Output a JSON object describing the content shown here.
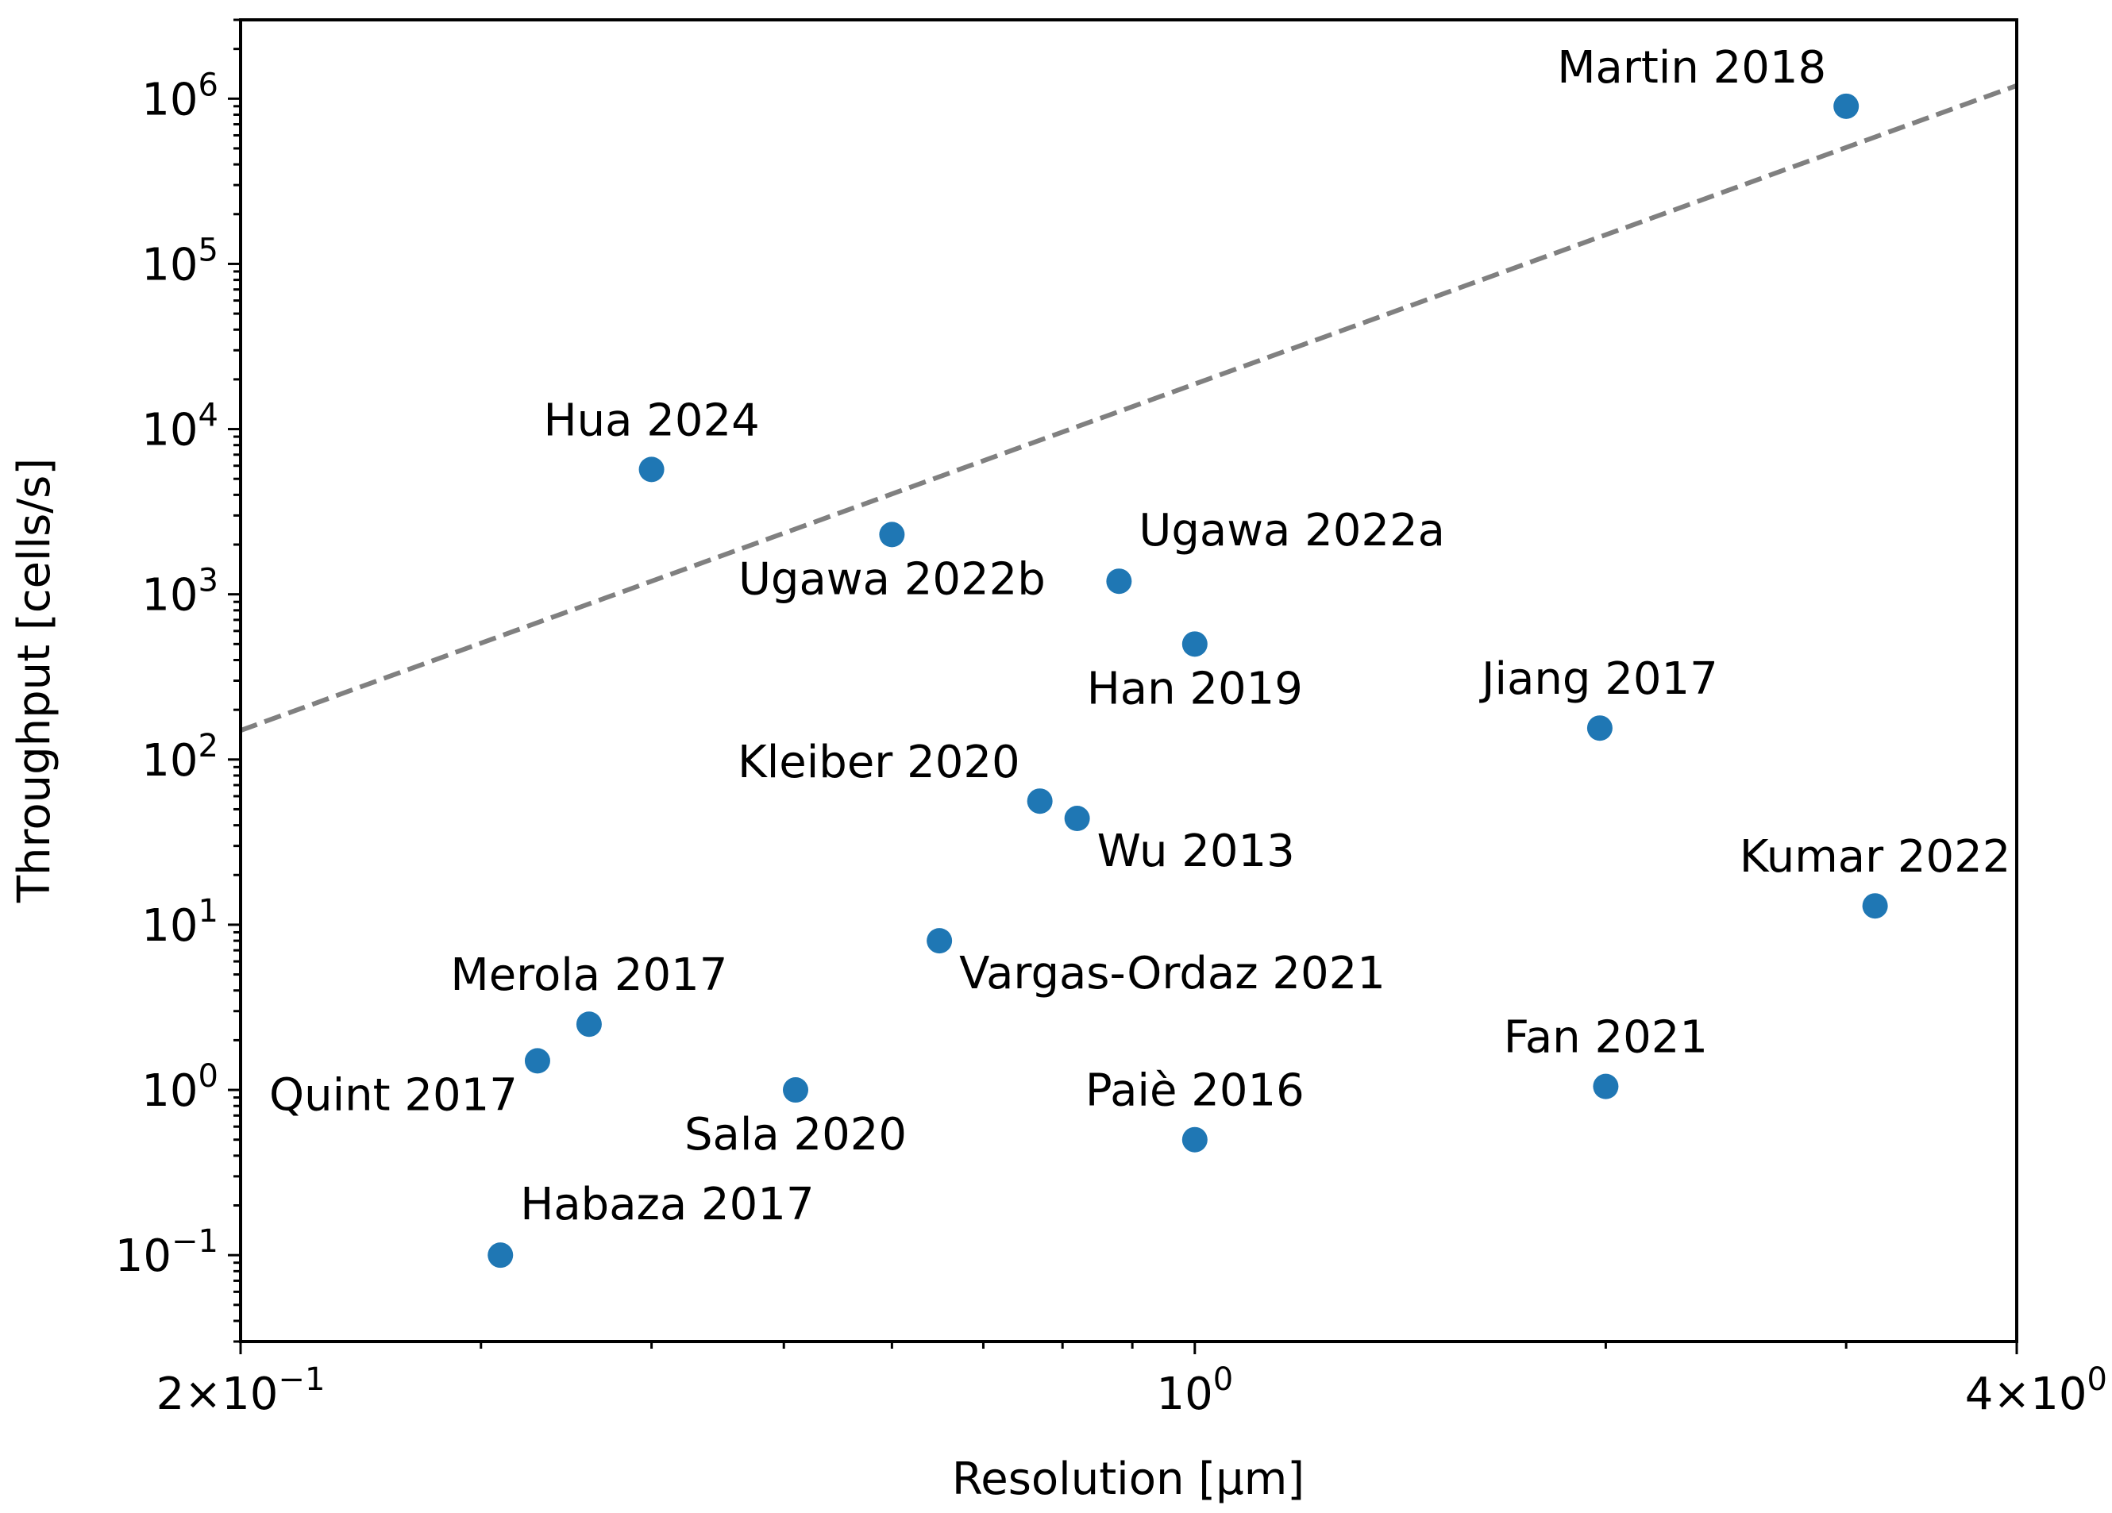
{
  "chart_data": {
    "type": "scatter",
    "title": "",
    "xlabel": "Resolution [μm]",
    "ylabel": "Throughput [cells/s]",
    "xscale": "log",
    "yscale": "log",
    "xlim": [
      0.2,
      4.0
    ],
    "ylim": [
      0.03,
      3000000
    ],
    "x_tick_labels": [
      {
        "value": 0.2,
        "mantissa": "2",
        "base": "10",
        "exp": "−1"
      },
      {
        "value": 1.0,
        "mantissa": "",
        "base": "10",
        "exp": "0"
      },
      {
        "value": 4.0,
        "mantissa": "4",
        "base": "10",
        "exp": "0"
      }
    ],
    "y_tick_labels": [
      {
        "value": 0.1,
        "base": "10",
        "exp": "−1"
      },
      {
        "value": 1,
        "base": "10",
        "exp": "0"
      },
      {
        "value": 10,
        "base": "10",
        "exp": "1"
      },
      {
        "value": 100,
        "base": "10",
        "exp": "2"
      },
      {
        "value": 1000,
        "base": "10",
        "exp": "3"
      },
      {
        "value": 10000,
        "base": "10",
        "exp": "4"
      },
      {
        "value": 100000,
        "base": "10",
        "exp": "5"
      },
      {
        "value": 1000000,
        "base": "10",
        "exp": "6"
      }
    ],
    "point_color": "#1f77b4",
    "trend_color": "#808080",
    "trend_line": {
      "style": "dashed",
      "points": [
        [
          0.2,
          150
        ],
        [
          4.0,
          1200000
        ]
      ]
    },
    "points": [
      {
        "label": "Martin 2018",
        "x": 3.0,
        "y": 900000,
        "anchor": "upper-left"
      },
      {
        "label": "Hua 2024",
        "x": 0.4,
        "y": 5700,
        "anchor": "above"
      },
      {
        "label": "Ugawa 2022b",
        "x": 0.6,
        "y": 2300,
        "anchor": "below"
      },
      {
        "label": "Ugawa 2022a",
        "x": 0.88,
        "y": 1200,
        "anchor": "upper-right"
      },
      {
        "label": "Han 2019",
        "x": 1.0,
        "y": 500,
        "anchor": "below"
      },
      {
        "label": "Jiang 2017",
        "x": 1.98,
        "y": 155,
        "anchor": "above"
      },
      {
        "label": "Kleiber 2020",
        "x": 0.77,
        "y": 56,
        "anchor": "upper-left"
      },
      {
        "label": "Wu 2013",
        "x": 0.82,
        "y": 44,
        "anchor": "lower-right"
      },
      {
        "label": "Kumar 2022",
        "x": 3.15,
        "y": 13,
        "anchor": "above"
      },
      {
        "label": "Vargas-Ordaz 2021",
        "x": 0.65,
        "y": 8,
        "anchor": "lower-right"
      },
      {
        "label": "Merola 2017",
        "x": 0.36,
        "y": 2.5,
        "anchor": "above"
      },
      {
        "label": "Quint 2017",
        "x": 0.33,
        "y": 1.5,
        "anchor": "lower-left"
      },
      {
        "label": "Sala 2020",
        "x": 0.51,
        "y": 1.0,
        "anchor": "below"
      },
      {
        "label": "Paiè 2016",
        "x": 1.0,
        "y": 0.5,
        "anchor": "above"
      },
      {
        "label": "Fan 2021",
        "x": 2.0,
        "y": 1.05,
        "anchor": "above"
      },
      {
        "label": "Habaza 2017",
        "x": 0.31,
        "y": 0.1,
        "anchor": "upper-right"
      }
    ]
  }
}
